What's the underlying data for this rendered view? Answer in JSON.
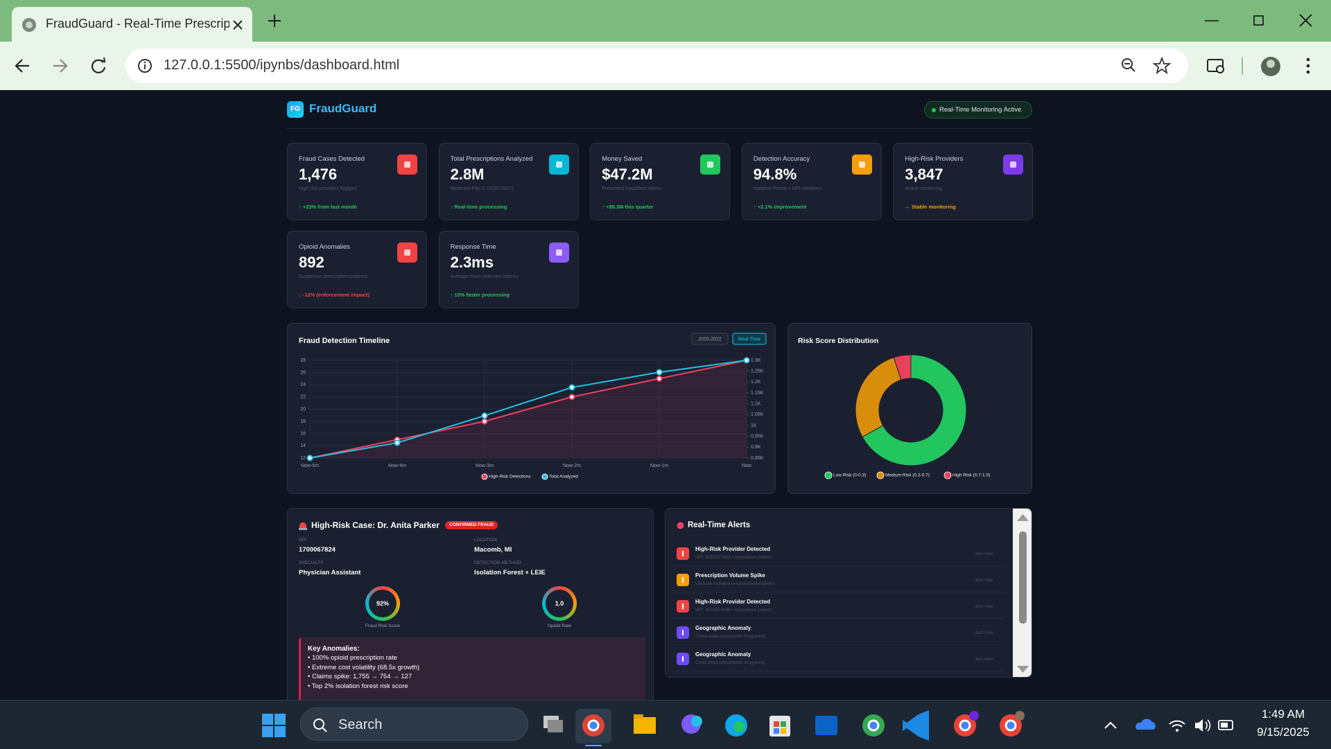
{
  "browser": {
    "tab_title": "FraudGuard - Real-Time Prescrip",
    "url": "127.0.0.1:5500/ipynbs/dashboard.html"
  },
  "header": {
    "logo": "FG",
    "brand": "FraudGuard",
    "status": "Real-Time Monitoring Active"
  },
  "kpis": [
    {
      "label": "Fraud Cases Detected",
      "value": "1,476",
      "note": "High risk providers flagged",
      "trend": "↑ +23% from last month",
      "icon_color": "#ef4444",
      "trend_color": "#22c55e"
    },
    {
      "label": "Total Prescriptions Analyzed",
      "value": "2.8M",
      "note": "Medicare Part D (2020-2022)",
      "trend": "↑ Real-time processing",
      "icon_color": "#06b6d4",
      "trend_color": "#22c55e"
    },
    {
      "label": "Money Saved",
      "value": "$47.2M",
      "note": "Prevented fraudulent claims",
      "trend": "↑ +$8.3M this quarter",
      "icon_color": "#22c55e",
      "trend_color": "#22c55e"
    },
    {
      "label": "Detection Accuracy",
      "value": "94.8%",
      "note": "Isolation Forest + NPI validation",
      "trend": "↑ +2.1% improvement",
      "icon_color": "#f59e0b",
      "trend_color": "#22c55e"
    },
    {
      "label": "High-Risk Providers",
      "value": "3,847",
      "note": "Active monitoring",
      "trend": "↔ Stable monitoring",
      "icon_color": "#7c3aed",
      "trend_color": "#f59e0b"
    },
    {
      "label": "Opioid Anomalies",
      "value": "892",
      "note": "Suspicious prescription patterns",
      "trend": "↓ -12% (enforcement impact)",
      "icon_color": "#ef4444",
      "trend_color": "#ef4444"
    },
    {
      "label": "Response Time",
      "value": "2.3ms",
      "note": "Average fraud detection latency",
      "trend": "↑ 15% faster processing",
      "icon_color": "#8b5cf6",
      "trend_color": "#22c55e"
    }
  ],
  "chart_data": [
    {
      "type": "line",
      "title": "Fraud Detection Timeline",
      "buttons": [
        "2020-2022",
        "Real-Time"
      ],
      "categories": [
        "Now-5m",
        "Now-4m",
        "Now-3m",
        "Now-2m",
        "Now-1m",
        "Now"
      ],
      "ylim": [
        12,
        28
      ],
      "yticks": [
        12,
        14,
        16,
        18,
        20,
        22,
        24,
        26,
        28
      ],
      "y2lim": [
        850,
        1300
      ],
      "y2ticks": [
        {
          "value": 850,
          "label": "0.85K"
        },
        {
          "value": 900,
          "label": "0.9K"
        },
        {
          "value": 950,
          "label": "0.95K"
        },
        {
          "value": 1000,
          "label": "1K"
        },
        {
          "value": 1050,
          "label": "1.05K"
        },
        {
          "value": 1100,
          "label": "1.1K"
        },
        {
          "value": 1150,
          "label": "1.15K"
        },
        {
          "value": 1200,
          "label": "1.2K"
        },
        {
          "value": 1250,
          "label": "1.25K"
        },
        {
          "value": 1300,
          "label": "1.3K"
        }
      ],
      "grid": true,
      "legend": "bottom",
      "series": [
        {
          "name": "High-Risk Detections",
          "color": "#f43f5e",
          "values": [
            12,
            15,
            18,
            22,
            25,
            28
          ]
        },
        {
          "name": "Total Analyzed",
          "color": "#22c3e6",
          "axis": "y2",
          "values": [
            850,
            920,
            1045,
            1175,
            1245,
            1300
          ]
        }
      ]
    },
    {
      "type": "doughnut",
      "title": "Risk Score Distribution",
      "categories": [
        "Low Risk (0-0.3)",
        "Medium Risk (0.3-0.7)",
        "High Risk (0.7-1.0)"
      ],
      "values": [
        67,
        28,
        5
      ],
      "colors": [
        "#22c55e",
        "#d98e0b",
        "#e8415a"
      ],
      "legend": "bottom"
    }
  ],
  "case": {
    "title": "High-Risk Case: Dr. Anita Parker",
    "badge": "CONFIRMED FRAUD",
    "fields": [
      {
        "label": "NPI",
        "value": "1700067824"
      },
      {
        "label": "LOCATION",
        "value": "Macomb, MI"
      },
      {
        "label": "SPECIALTY",
        "value": "Physician Assistant"
      },
      {
        "label": "DETECTION METHOD",
        "value": "Isolation Forest + LEIE"
      }
    ],
    "gauges": [
      {
        "value": "92%",
        "label": "Fraud Risk Score"
      },
      {
        "value": "1.0",
        "label": "Opioid Rate"
      }
    ],
    "anomalies": {
      "title": "Key Anomalies:",
      "items": [
        "• 100% opioid prescription rate",
        "• Extreme cost volatility (68.5x growth)",
        "• Claims spike: 1,755 → 754 → 127",
        "• Top 2% isolation forest risk score"
      ]
    }
  },
  "alerts": {
    "title": "Real-Time Alerts",
    "items": [
      {
        "title": "High-Risk Provider Detected",
        "detail": "NPI: 8293357422 • Anomalous pattern",
        "time": "Just now",
        "color": "#ef4444"
      },
      {
        "title": "Prescription Volume Spike",
        "detail": "Unusual increase in opioid prescriptions",
        "time": "Just now",
        "color": "#f59e0b"
      },
      {
        "title": "High-Risk Provider Detected",
        "detail": "NPI: 4029954688 • Anomalous pattern",
        "time": "Just now",
        "color": "#ef4444"
      },
      {
        "title": "Geographic Anomaly",
        "detail": "Cross-state prescription irregularity",
        "time": "Just now",
        "color": "#6d4aff"
      },
      {
        "title": "Geographic Anomaly",
        "detail": "Cross-state prescription irregularity",
        "time": "Just now",
        "color": "#6d4aff"
      }
    ]
  },
  "taskbar": {
    "search": "Search",
    "time": "1:49 AM",
    "date": "9/15/2025"
  }
}
